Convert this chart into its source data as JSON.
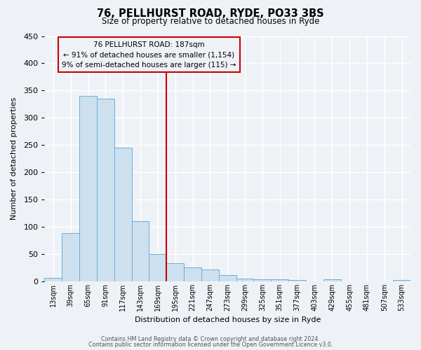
{
  "title": "76, PELLHURST ROAD, RYDE, PO33 3BS",
  "subtitle": "Size of property relative to detached houses in Ryde",
  "xlabel": "Distribution of detached houses by size in Ryde",
  "ylabel": "Number of detached properties",
  "bar_labels": [
    "13sqm",
    "39sqm",
    "65sqm",
    "91sqm",
    "117sqm",
    "143sqm",
    "169sqm",
    "195sqm",
    "221sqm",
    "247sqm",
    "273sqm",
    "299sqm",
    "325sqm",
    "351sqm",
    "377sqm",
    "403sqm",
    "429sqm",
    "455sqm",
    "481sqm",
    "507sqm",
    "533sqm"
  ],
  "bar_heights": [
    7,
    89,
    340,
    335,
    245,
    110,
    50,
    33,
    26,
    22,
    11,
    5,
    4,
    4,
    3,
    0,
    4,
    0,
    0,
    0,
    3
  ],
  "bar_color": "#cde0f0",
  "bar_edgecolor": "#6aafd6",
  "vline_color": "#cc0000",
  "annotation_line1": "76 PELLHURST ROAD: 187sqm",
  "annotation_line2": "← 91% of detached houses are smaller (1,154)",
  "annotation_line3": "9% of semi-detached houses are larger (115) →",
  "annotation_box_edgecolor": "#cc0000",
  "ylim": [
    0,
    450
  ],
  "yticks": [
    0,
    50,
    100,
    150,
    200,
    250,
    300,
    350,
    400,
    450
  ],
  "footer_line1": "Contains HM Land Registry data © Crown copyright and database right 2024.",
  "footer_line2": "Contains public sector information licensed under the Open Government Licence v3.0.",
  "background_color": "#eef2f7",
  "grid_color": "#ffffff"
}
